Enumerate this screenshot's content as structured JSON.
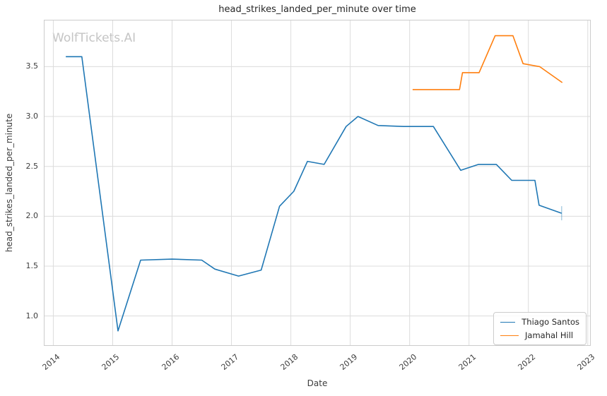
{
  "watermark": "WolfTickets.AI",
  "colors": {
    "background": "#ffffff",
    "grid": "#dcdcdc",
    "spine": "#cccccc",
    "title_text": "#262626",
    "tick_text": "#3d3d3d",
    "watermark_text": "#c5c5c5",
    "series_blue": "#1f77b4",
    "series_orange": "#ff7f0e"
  },
  "chart_data": {
    "type": "line",
    "title": "head_strikes_landed_per_minute over time",
    "xlabel": "Date",
    "ylabel": "head_strikes_landed_per_minute",
    "grid": true,
    "legend_position": "lower right",
    "xlim": [
      2013.84,
      2023.05
    ],
    "ylim": [
      0.7,
      3.97
    ],
    "x_ticks": [
      2014,
      2015,
      2016,
      2017,
      2018,
      2019,
      2020,
      2021,
      2022,
      2023
    ],
    "y_ticks": [
      1.0,
      1.5,
      2.0,
      2.5,
      3.0,
      3.5
    ],
    "series": [
      {
        "name": "Thiago Santos",
        "color": "#1f77b4",
        "end_tick": true,
        "points": [
          [
            2014.21,
            3.6
          ],
          [
            2014.48,
            3.6
          ],
          [
            2015.09,
            0.85
          ],
          [
            2015.47,
            1.56
          ],
          [
            2016.0,
            1.57
          ],
          [
            2016.5,
            1.56
          ],
          [
            2016.72,
            1.47
          ],
          [
            2017.12,
            1.4
          ],
          [
            2017.5,
            1.46
          ],
          [
            2017.81,
            2.1
          ],
          [
            2018.05,
            2.25
          ],
          [
            2018.28,
            2.55
          ],
          [
            2018.56,
            2.52
          ],
          [
            2018.93,
            2.9
          ],
          [
            2019.13,
            3.0
          ],
          [
            2019.47,
            2.91
          ],
          [
            2019.9,
            2.9
          ],
          [
            2020.4,
            2.9
          ],
          [
            2020.86,
            2.46
          ],
          [
            2021.16,
            2.52
          ],
          [
            2021.46,
            2.52
          ],
          [
            2021.72,
            2.36
          ],
          [
            2022.11,
            2.36
          ],
          [
            2022.18,
            2.11
          ],
          [
            2022.56,
            2.03
          ]
        ]
      },
      {
        "name": "Jamahal Hill",
        "color": "#ff7f0e",
        "end_tick": false,
        "points": [
          [
            2020.05,
            3.27
          ],
          [
            2020.84,
            3.27
          ],
          [
            2020.89,
            3.44
          ],
          [
            2021.17,
            3.44
          ],
          [
            2021.44,
            3.81
          ],
          [
            2021.74,
            3.81
          ],
          [
            2021.91,
            3.53
          ],
          [
            2022.19,
            3.5
          ],
          [
            2022.57,
            3.34
          ]
        ]
      }
    ]
  }
}
